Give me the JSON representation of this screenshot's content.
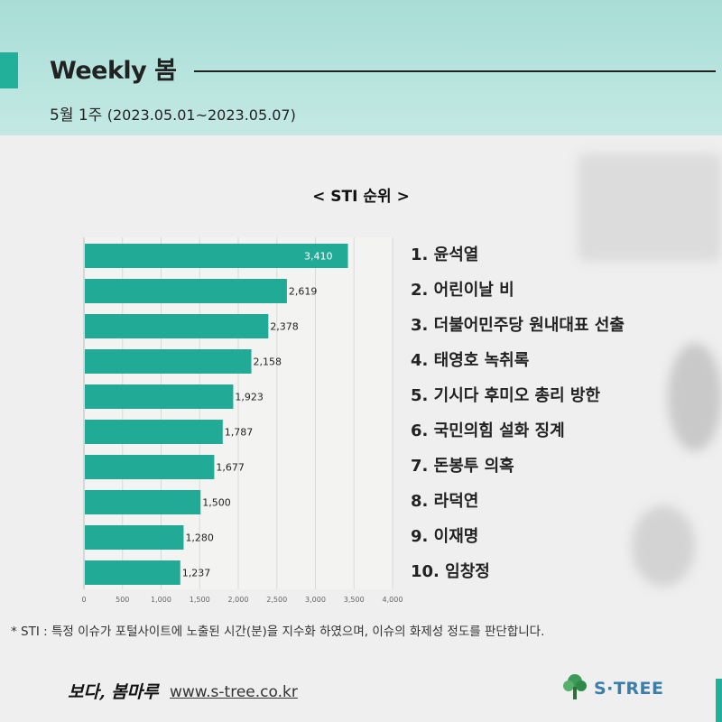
{
  "header": {
    "title": "Weekly 봄",
    "week_label": "5월 1주",
    "date_range": "(2023.05.01~2023.05.07)"
  },
  "chart_title": "< STI 순위 >",
  "chart_data": {
    "type": "bar",
    "orientation": "horizontal",
    "categories": [
      "윤석열",
      "어린이날 비",
      "더불어민주당 원내대표 선출",
      "태영호 녹취록",
      "기시다 후미오 총리 방한",
      "국민의힘 설화 징계",
      "돈봉투 의혹",
      "라덕연",
      "이재명",
      "임창정"
    ],
    "values": [
      3410,
      2619,
      2378,
      2158,
      1923,
      1787,
      1677,
      1500,
      1280,
      1237
    ],
    "value_labels": [
      "3,410",
      "2,619",
      "2,378",
      "2,158",
      "1,923",
      "1,787",
      "1,677",
      "1,500",
      "1,280",
      "1,237"
    ],
    "xlim": [
      0,
      4000
    ],
    "ticks": [
      "0",
      "500",
      "1,000",
      "1,500",
      "2,000",
      "2,500",
      "3,000",
      "3,500",
      "4,000"
    ],
    "tick_values": [
      0,
      500,
      1000,
      1500,
      2000,
      2500,
      3000,
      3500,
      4000
    ],
    "bar_color": "#21ab97",
    "grid": true
  },
  "ranking": [
    "1. 윤석열",
    "2. 어린이날 비",
    "3. 더불어민주당 원내대표 선출",
    "4. 태영호 녹취록",
    "5. 기시다 후미오 총리 방한",
    "6. 국민의힘 설화 징계",
    "7. 돈봉투 의혹",
    "8. 라덕연",
    "9. 이재명",
    "10. 임창정"
  ],
  "footnote": "* STI : 특정 이슈가 포털사이트에 노출된 시간(분)을 지수화 하였으며, 이슈의 화제성 정도를 판단합니다.",
  "footer": {
    "brand": "보다, 봄마루",
    "url": "www.s-tree.co.kr",
    "logo_text": "S·TREE",
    "logo_icon": "tree-icon"
  },
  "colors": {
    "accent": "#22b09a",
    "header_bg": "#b5e3dd",
    "logo_blue": "#3b7fa8"
  }
}
